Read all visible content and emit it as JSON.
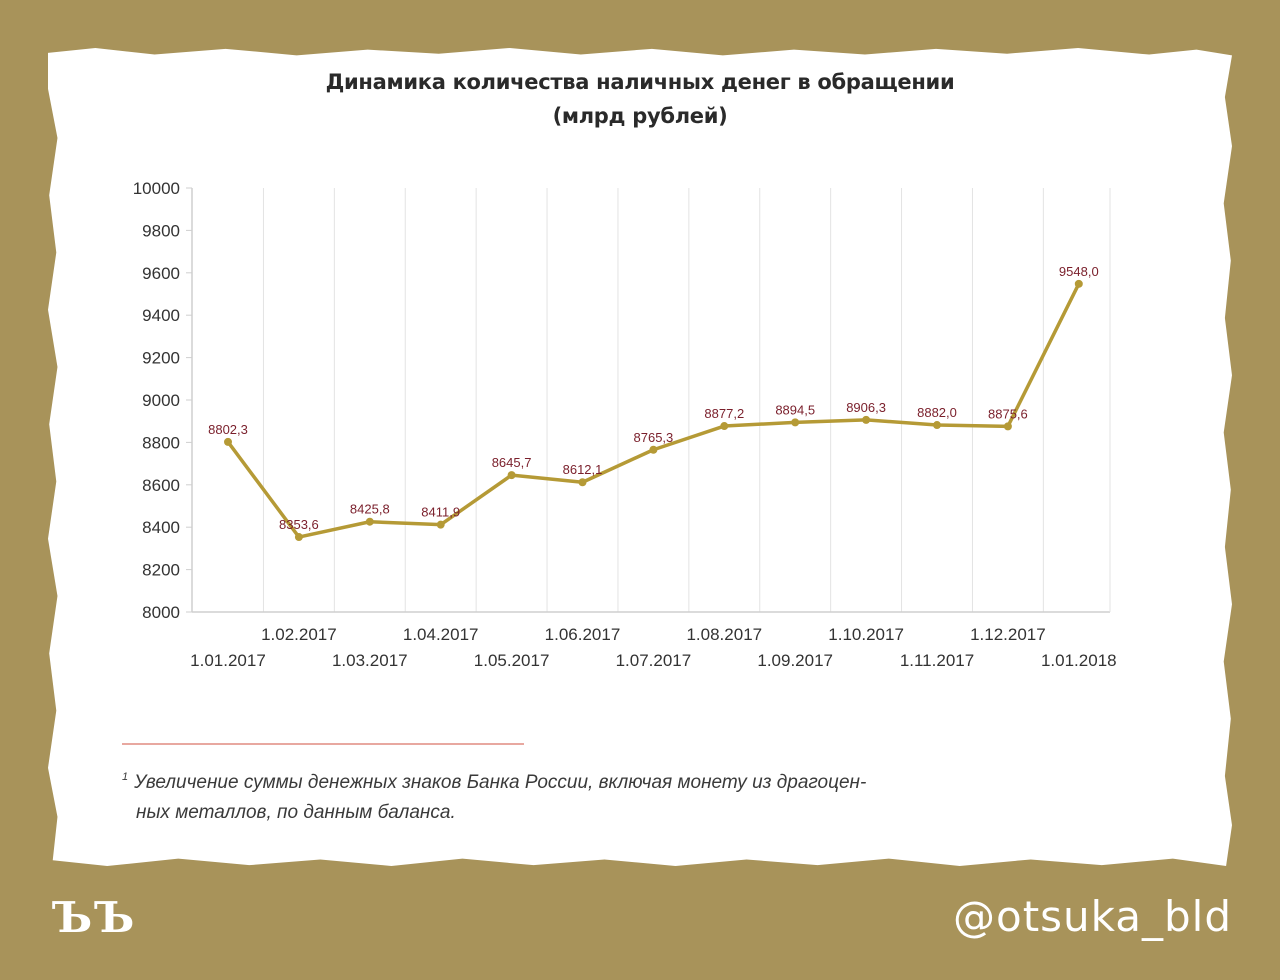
{
  "page": {
    "brand": "ЪЪ",
    "handle": "@otsuka_bld"
  },
  "chart_data": {
    "type": "line",
    "title": "Динамика количества наличных денег в обращении",
    "subtitle": "(млрд рублей)",
    "categories": [
      "1.01.2017",
      "1.02.2017",
      "1.03.2017",
      "1.04.2017",
      "1.05.2017",
      "1.06.2017",
      "1.07.2017",
      "1.08.2017",
      "1.09.2017",
      "1.10.2017",
      "1.11.2017",
      "1.12.2017",
      "1.01.2018"
    ],
    "values": [
      8802.3,
      8353.6,
      8425.8,
      8411.9,
      8645.7,
      8612.1,
      8765.3,
      8877.2,
      8894.5,
      8906.3,
      8882.0,
      8875.6,
      9548.0
    ],
    "value_labels": [
      "8802,3",
      "8353,6",
      "8425,8",
      "8411,9",
      "8645,7",
      "8612,1",
      "8765,3",
      "8877,2",
      "8894,5",
      "8906,3",
      "8882,0",
      "8875,6",
      "9548,0"
    ],
    "ylim": [
      8000,
      10000
    ],
    "yticks": [
      8000,
      8200,
      8400,
      8600,
      8800,
      9000,
      9200,
      9400,
      9600,
      9800,
      10000
    ],
    "grid": true,
    "line_color": "#b59a36",
    "label_color": "#7a1f2b"
  },
  "footnote": {
    "marker": "1",
    "line1": "Увеличение суммы денежных знаков Банка России, включая монету из драгоцен-",
    "line2": "ных металлов, по данным баланса."
  }
}
